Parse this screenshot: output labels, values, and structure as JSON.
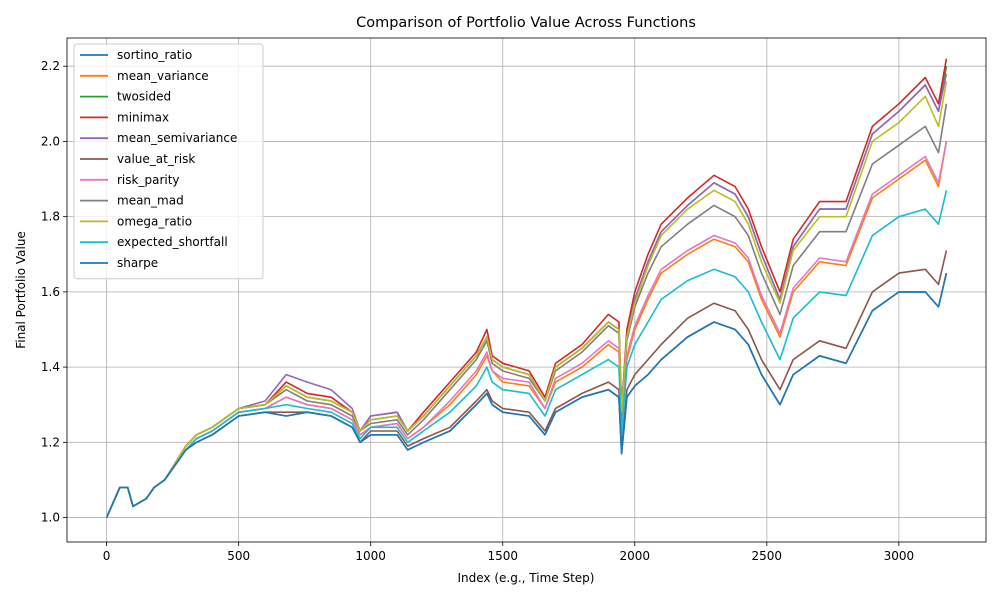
{
  "chart_data": {
    "type": "line",
    "title": "Comparison of Portfolio Value Across Functions",
    "xlabel": "Index (e.g., Time Step)",
    "ylabel": "Final Portfolio Value",
    "xlim": [
      -150,
      3330
    ],
    "ylim": [
      0.935,
      2.275
    ],
    "xticks": [
      0,
      500,
      1000,
      1500,
      2000,
      2500,
      3000
    ],
    "yticks": [
      1.0,
      1.2,
      1.4,
      1.6,
      1.8,
      2.0,
      2.2
    ],
    "ytick_labels": [
      "1.0",
      "1.2",
      "1.4",
      "1.6",
      "1.8",
      "2.0",
      "2.2"
    ],
    "grid": true,
    "legend_position": "upper left",
    "x": [
      0,
      50,
      80,
      100,
      150,
      180,
      220,
      300,
      340,
      400,
      500,
      600,
      680,
      760,
      850,
      930,
      960,
      1000,
      1100,
      1140,
      1200,
      1300,
      1400,
      1440,
      1460,
      1500,
      1600,
      1660,
      1700,
      1800,
      1900,
      1940,
      1950,
      1970,
      2000,
      2050,
      2100,
      2200,
      2300,
      2380,
      2430,
      2480,
      2550,
      2600,
      2700,
      2800,
      2900,
      3000,
      3100,
      3150,
      3180
    ],
    "series": [
      {
        "name": "sortino_ratio",
        "color": "#1f77b4",
        "values": [
          1.0,
          1.08,
          1.08,
          1.03,
          1.05,
          1.08,
          1.1,
          1.18,
          1.2,
          1.22,
          1.27,
          1.28,
          1.27,
          1.28,
          1.27,
          1.24,
          1.2,
          1.22,
          1.22,
          1.18,
          1.2,
          1.23,
          1.3,
          1.33,
          1.3,
          1.28,
          1.27,
          1.22,
          1.28,
          1.32,
          1.34,
          1.32,
          1.17,
          1.32,
          1.35,
          1.38,
          1.42,
          1.48,
          1.52,
          1.5,
          1.46,
          1.38,
          1.3,
          1.38,
          1.43,
          1.41,
          1.55,
          1.6,
          1.6,
          1.56,
          1.65
        ]
      },
      {
        "name": "mean_variance",
        "color": "#ff7f0e",
        "values": [
          1.0,
          1.08,
          1.08,
          1.03,
          1.05,
          1.08,
          1.1,
          1.18,
          1.21,
          1.23,
          1.28,
          1.29,
          1.32,
          1.3,
          1.29,
          1.26,
          1.22,
          1.24,
          1.25,
          1.21,
          1.24,
          1.3,
          1.38,
          1.43,
          1.39,
          1.36,
          1.35,
          1.29,
          1.36,
          1.4,
          1.46,
          1.44,
          1.25,
          1.42,
          1.5,
          1.58,
          1.65,
          1.7,
          1.74,
          1.72,
          1.68,
          1.58,
          1.48,
          1.6,
          1.68,
          1.67,
          1.85,
          1.9,
          1.95,
          1.88,
          2.0
        ]
      },
      {
        "name": "twosided",
        "color": "#2ca02c",
        "values": [
          1.0,
          1.08,
          1.08,
          1.03,
          1.05,
          1.08,
          1.1,
          1.19,
          1.22,
          1.24,
          1.29,
          1.3,
          1.35,
          1.32,
          1.31,
          1.28,
          1.23,
          1.26,
          1.27,
          1.23,
          1.27,
          1.35,
          1.43,
          1.48,
          1.42,
          1.4,
          1.38,
          1.31,
          1.4,
          1.45,
          1.52,
          1.5,
          1.28,
          1.48,
          1.58,
          1.68,
          1.76,
          1.83,
          1.89,
          1.86,
          1.8,
          1.7,
          1.58,
          1.72,
          1.82,
          1.82,
          2.02,
          2.08,
          2.15,
          2.08,
          2.2
        ]
      },
      {
        "name": "minimax",
        "color": "#d62728",
        "values": [
          1.0,
          1.08,
          1.08,
          1.03,
          1.05,
          1.08,
          1.1,
          1.19,
          1.22,
          1.24,
          1.29,
          1.3,
          1.36,
          1.33,
          1.32,
          1.28,
          1.23,
          1.27,
          1.28,
          1.23,
          1.28,
          1.36,
          1.44,
          1.5,
          1.43,
          1.41,
          1.39,
          1.32,
          1.41,
          1.46,
          1.54,
          1.52,
          1.29,
          1.5,
          1.6,
          1.7,
          1.78,
          1.85,
          1.91,
          1.88,
          1.82,
          1.72,
          1.6,
          1.74,
          1.84,
          1.84,
          2.04,
          2.1,
          2.17,
          2.1,
          2.22
        ]
      },
      {
        "name": "mean_semivariance",
        "color": "#9467bd",
        "values": [
          1.0,
          1.08,
          1.08,
          1.03,
          1.05,
          1.08,
          1.1,
          1.19,
          1.22,
          1.24,
          1.29,
          1.31,
          1.38,
          1.36,
          1.34,
          1.29,
          1.23,
          1.27,
          1.28,
          1.23,
          1.27,
          1.35,
          1.43,
          1.48,
          1.42,
          1.4,
          1.38,
          1.31,
          1.4,
          1.45,
          1.52,
          1.5,
          1.28,
          1.48,
          1.58,
          1.68,
          1.76,
          1.83,
          1.89,
          1.86,
          1.8,
          1.7,
          1.58,
          1.72,
          1.82,
          1.82,
          2.02,
          2.08,
          2.15,
          2.08,
          2.18
        ]
      },
      {
        "name": "value_at_risk",
        "color": "#8c564b",
        "values": [
          1.0,
          1.08,
          1.08,
          1.03,
          1.05,
          1.08,
          1.1,
          1.18,
          1.2,
          1.22,
          1.27,
          1.28,
          1.28,
          1.28,
          1.27,
          1.24,
          1.2,
          1.23,
          1.23,
          1.19,
          1.21,
          1.24,
          1.31,
          1.34,
          1.31,
          1.29,
          1.28,
          1.23,
          1.29,
          1.33,
          1.36,
          1.34,
          1.18,
          1.34,
          1.38,
          1.42,
          1.46,
          1.53,
          1.57,
          1.55,
          1.5,
          1.42,
          1.34,
          1.42,
          1.47,
          1.45,
          1.6,
          1.65,
          1.66,
          1.62,
          1.71
        ]
      },
      {
        "name": "risk_parity",
        "color": "#e377c2",
        "values": [
          1.0,
          1.08,
          1.08,
          1.03,
          1.05,
          1.08,
          1.1,
          1.18,
          1.21,
          1.23,
          1.28,
          1.29,
          1.32,
          1.3,
          1.29,
          1.26,
          1.22,
          1.24,
          1.25,
          1.21,
          1.24,
          1.31,
          1.39,
          1.44,
          1.39,
          1.37,
          1.36,
          1.29,
          1.37,
          1.41,
          1.47,
          1.45,
          1.25,
          1.43,
          1.51,
          1.59,
          1.66,
          1.71,
          1.75,
          1.73,
          1.69,
          1.59,
          1.49,
          1.61,
          1.69,
          1.68,
          1.86,
          1.91,
          1.96,
          1.89,
          2.0
        ]
      },
      {
        "name": "mean_mad",
        "color": "#7f7f7f",
        "values": [
          1.0,
          1.08,
          1.08,
          1.03,
          1.05,
          1.08,
          1.1,
          1.19,
          1.22,
          1.24,
          1.29,
          1.3,
          1.34,
          1.31,
          1.3,
          1.27,
          1.23,
          1.25,
          1.26,
          1.22,
          1.26,
          1.34,
          1.42,
          1.47,
          1.41,
          1.39,
          1.37,
          1.31,
          1.39,
          1.44,
          1.51,
          1.49,
          1.27,
          1.47,
          1.56,
          1.65,
          1.72,
          1.78,
          1.83,
          1.8,
          1.75,
          1.65,
          1.54,
          1.67,
          1.76,
          1.76,
          1.94,
          1.99,
          2.04,
          1.97,
          2.1
        ]
      },
      {
        "name": "omega_ratio",
        "color": "#bcbd22",
        "values": [
          1.0,
          1.08,
          1.08,
          1.03,
          1.05,
          1.08,
          1.1,
          1.19,
          1.22,
          1.24,
          1.29,
          1.3,
          1.35,
          1.32,
          1.31,
          1.28,
          1.23,
          1.26,
          1.27,
          1.23,
          1.27,
          1.35,
          1.43,
          1.48,
          1.42,
          1.4,
          1.38,
          1.31,
          1.4,
          1.45,
          1.52,
          1.5,
          1.28,
          1.48,
          1.57,
          1.67,
          1.75,
          1.82,
          1.87,
          1.84,
          1.78,
          1.68,
          1.57,
          1.71,
          1.8,
          1.8,
          2.0,
          2.05,
          2.12,
          2.04,
          2.16
        ]
      },
      {
        "name": "expected_shortfall",
        "color": "#17becf",
        "values": [
          1.0,
          1.08,
          1.08,
          1.03,
          1.05,
          1.08,
          1.1,
          1.18,
          1.21,
          1.23,
          1.28,
          1.29,
          1.3,
          1.29,
          1.28,
          1.25,
          1.21,
          1.24,
          1.24,
          1.2,
          1.23,
          1.28,
          1.35,
          1.4,
          1.36,
          1.34,
          1.33,
          1.27,
          1.34,
          1.38,
          1.42,
          1.4,
          1.22,
          1.4,
          1.46,
          1.52,
          1.58,
          1.63,
          1.66,
          1.64,
          1.6,
          1.52,
          1.42,
          1.53,
          1.6,
          1.59,
          1.75,
          1.8,
          1.82,
          1.78,
          1.87
        ]
      },
      {
        "name": "sharpe",
        "color": "#1f77b4",
        "values": [
          1.0,
          1.08,
          1.08,
          1.03,
          1.05,
          1.08,
          1.1,
          1.18,
          1.2,
          1.22,
          1.27,
          1.28,
          1.27,
          1.28,
          1.27,
          1.24,
          1.2,
          1.22,
          1.22,
          1.18,
          1.2,
          1.23,
          1.3,
          1.33,
          1.3,
          1.28,
          1.27,
          1.22,
          1.28,
          1.32,
          1.34,
          1.32,
          1.17,
          1.32,
          1.35,
          1.38,
          1.42,
          1.48,
          1.52,
          1.5,
          1.46,
          1.38,
          1.3,
          1.38,
          1.43,
          1.41,
          1.55,
          1.6,
          1.6,
          1.56,
          1.65
        ]
      }
    ]
  }
}
